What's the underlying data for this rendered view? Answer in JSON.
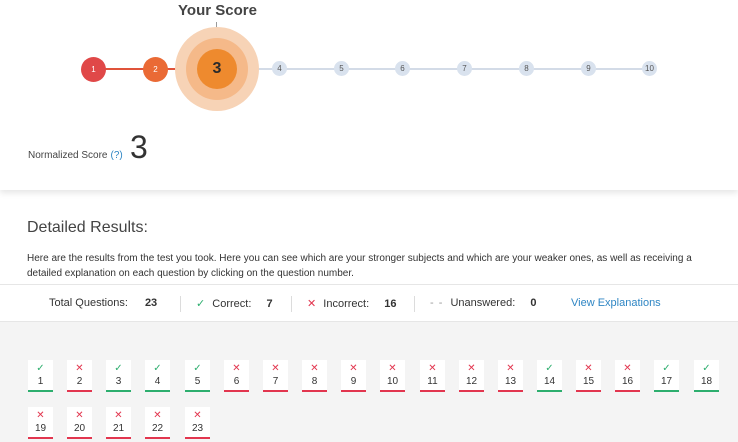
{
  "score_header": {
    "title": "Your Score",
    "current": "3"
  },
  "steps": [
    "1",
    "2",
    "4",
    "5",
    "6",
    "7",
    "8",
    "9",
    "10"
  ],
  "normalized": {
    "label": "Normalized Score",
    "help": "(?)",
    "value": "3"
  },
  "detailed": {
    "title": "Detailed Results:",
    "description": "Here are the results from the test you took. Here you can see which are your stronger subjects and which are your weaker ones, as well as receiving a detailed explanation on each question by clicking on the question number."
  },
  "stats": {
    "total_label": "Total Questions:",
    "total": "23",
    "correct_label": "Correct:",
    "correct": "7",
    "incorrect_label": "Incorrect:",
    "incorrect": "16",
    "unanswered_label": "Unanswered:",
    "unanswered": "0",
    "view_label": "View Explanations",
    "check_glyph": "✓",
    "x_glyph": "✕",
    "dash_glyph": "- -"
  },
  "colors": {
    "correct": "#2dae6e",
    "incorrect": "#e2364f",
    "link": "#2f86c4",
    "current": "#ee8a2e"
  },
  "questions": [
    {
      "n": "1",
      "ok": true,
      "mark": "✓"
    },
    {
      "n": "2",
      "ok": false,
      "mark": "✕"
    },
    {
      "n": "3",
      "ok": true,
      "mark": "✓"
    },
    {
      "n": "4",
      "ok": true,
      "mark": "✓"
    },
    {
      "n": "5",
      "ok": true,
      "mark": "✓"
    },
    {
      "n": "6",
      "ok": false,
      "mark": "✕"
    },
    {
      "n": "7",
      "ok": false,
      "mark": "✕"
    },
    {
      "n": "8",
      "ok": false,
      "mark": "✕"
    },
    {
      "n": "9",
      "ok": false,
      "mark": "✕"
    },
    {
      "n": "10",
      "ok": false,
      "mark": "✕"
    },
    {
      "n": "11",
      "ok": false,
      "mark": "✕"
    },
    {
      "n": "12",
      "ok": false,
      "mark": "✕"
    },
    {
      "n": "13",
      "ok": false,
      "mark": "✕"
    },
    {
      "n": "14",
      "ok": true,
      "mark": "✓"
    },
    {
      "n": "15",
      "ok": false,
      "mark": "✕"
    },
    {
      "n": "16",
      "ok": false,
      "mark": "✕"
    },
    {
      "n": "17",
      "ok": true,
      "mark": "✓"
    },
    {
      "n": "18",
      "ok": true,
      "mark": "✓"
    },
    {
      "n": "19",
      "ok": false,
      "mark": "✕"
    },
    {
      "n": "20",
      "ok": false,
      "mark": "✕"
    },
    {
      "n": "21",
      "ok": false,
      "mark": "✕"
    },
    {
      "n": "22",
      "ok": false,
      "mark": "✕"
    },
    {
      "n": "23",
      "ok": false,
      "mark": "✕"
    }
  ]
}
